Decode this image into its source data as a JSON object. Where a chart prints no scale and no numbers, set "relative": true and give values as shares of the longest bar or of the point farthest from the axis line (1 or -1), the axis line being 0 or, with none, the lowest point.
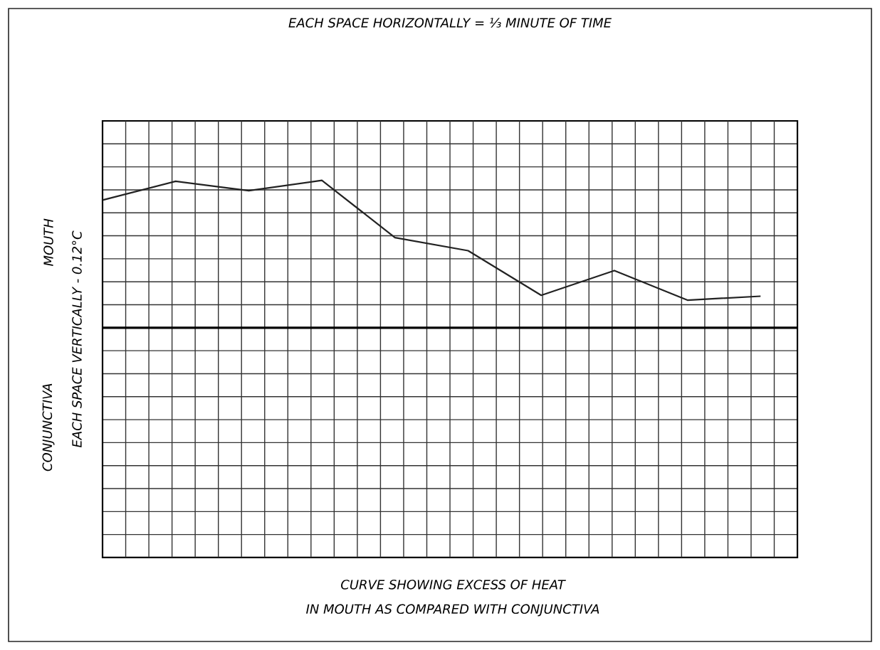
{
  "chart_data": {
    "type": "line",
    "relative": true,
    "title": "EACH SPACE HORIZONTALLY = ⅓ MINUTE OF TIME",
    "ylabel": "EACH SPACE VERTICALLY - 0.12°C",
    "annotations": [
      "MOUTH",
      "CONJUNCTIVA",
      "CURVE SHOWING EXCESS OF HEAT",
      "IN MOUTH AS COMPARED WITH CONJUNCTIVA"
    ],
    "categories": [
      null,
      null,
      null,
      null,
      null,
      null,
      null,
      null,
      null,
      null
    ],
    "values": [
      0.866,
      0.994,
      0.93,
      1,
      0.612,
      0.523,
      0.22,
      0.388,
      0.187,
      0.214
    ],
    "color": "#222222",
    "grid": true,
    "marker": "none",
    "line_style": "solid"
  }
}
